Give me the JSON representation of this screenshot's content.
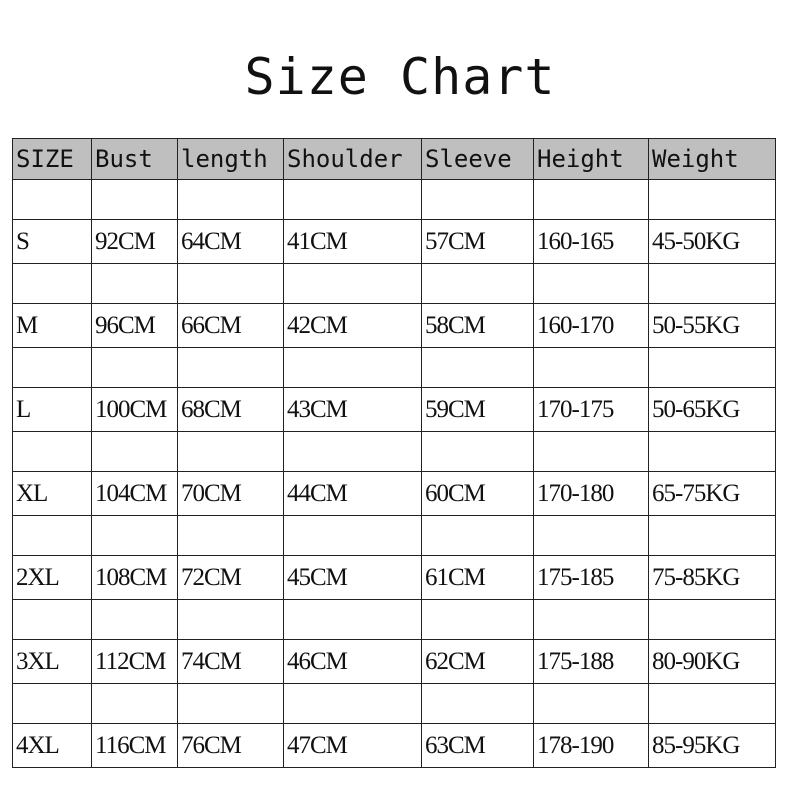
{
  "title": "Size Chart",
  "header_bg": "#bfbfbf",
  "columns": [
    "SIZE",
    "Bust",
    "length",
    "Shoulder",
    "Sleeve",
    "Height",
    "Weight"
  ],
  "rows": [
    [
      "S",
      "92CM",
      "64CM",
      "41CM",
      "57CM",
      "160-165",
      "45-50KG"
    ],
    [
      "M",
      "96CM",
      "66CM",
      "42CM",
      "58CM",
      "160-170",
      "50-55KG"
    ],
    [
      "L",
      "100CM",
      "68CM",
      "43CM",
      "59CM",
      "170-175",
      "50-65KG"
    ],
    [
      "XL",
      "104CM",
      "70CM",
      "44CM",
      "60CM",
      "170-180",
      "65-75KG"
    ],
    [
      "2XL",
      "108CM",
      "72CM",
      "45CM",
      "61CM",
      "175-185",
      "75-85KG"
    ],
    [
      "3XL",
      "112CM",
      "74CM",
      "46CM",
      "62CM",
      "175-188",
      "80-90KG"
    ],
    [
      "4XL",
      "116CM",
      "76CM",
      "47CM",
      "63CM",
      "178-190",
      "85-95KG"
    ]
  ]
}
